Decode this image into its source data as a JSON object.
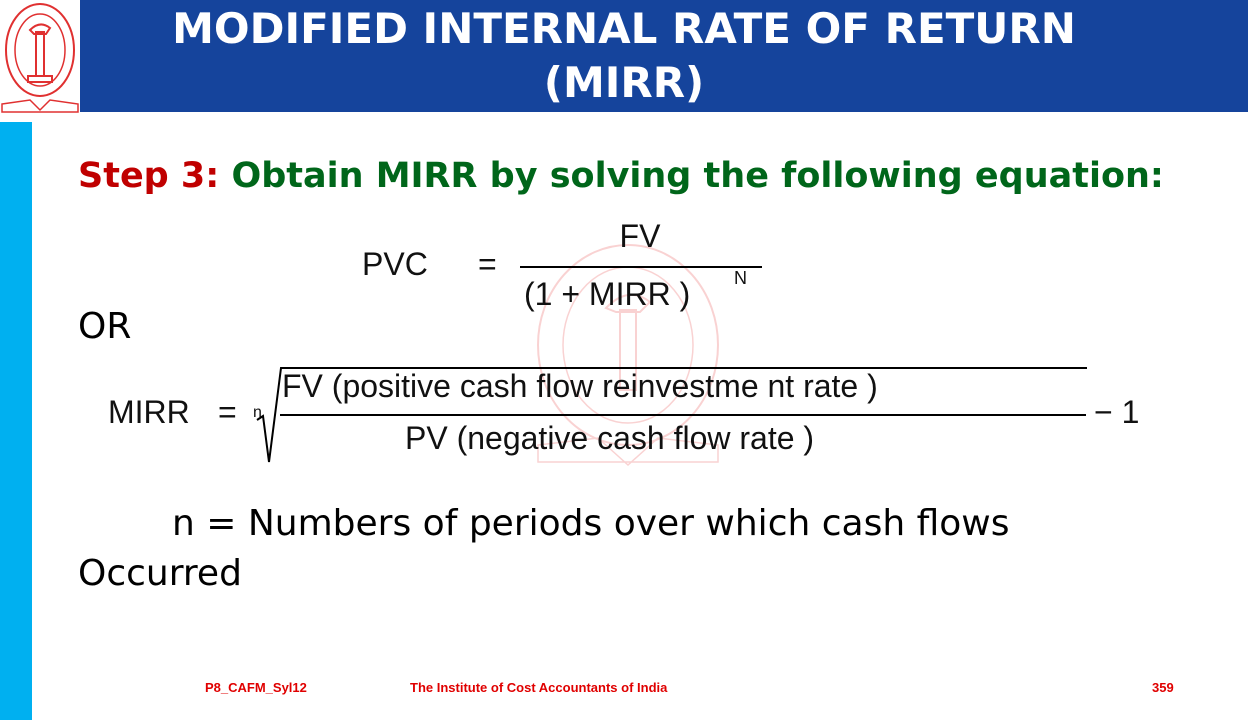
{
  "header": {
    "title_line1": "MODIFIED INTERNAL RATE OF RETURN",
    "title_line2": "(MIRR)"
  },
  "logo": {
    "text": "THE INSTITUTE OF COST ACCOUNTANTS OF INDIA"
  },
  "step": {
    "label": "Step 3:",
    "text": "Obtain MIRR by solving the following equation:"
  },
  "equation1": {
    "lhs": "PVC",
    "eq": "=",
    "numerator": "FV",
    "denominator": "(1 + MIRR )",
    "exponent": "N"
  },
  "or_label": "OR",
  "equation2": {
    "lhs": "MIRR",
    "eq": "=",
    "root_index": "n",
    "numerator": "FV (positive   cash  flow  reinvestme   nt rate )",
    "denominator": "PV (negative   cash  flow  rate )",
    "tail": "− 1"
  },
  "note": {
    "line1": "n = Numbers of periods over which cash flows",
    "line2": "Occurred"
  },
  "footer": {
    "code": "P8_CAFM_Syl12",
    "institute": "The Institute of Cost Accountants of India",
    "page": "359"
  },
  "colors": {
    "header": "#15449c",
    "strip": "#00b0f0",
    "step_label": "#c00000",
    "step_text": "#00661a",
    "footer": "#e00000"
  }
}
